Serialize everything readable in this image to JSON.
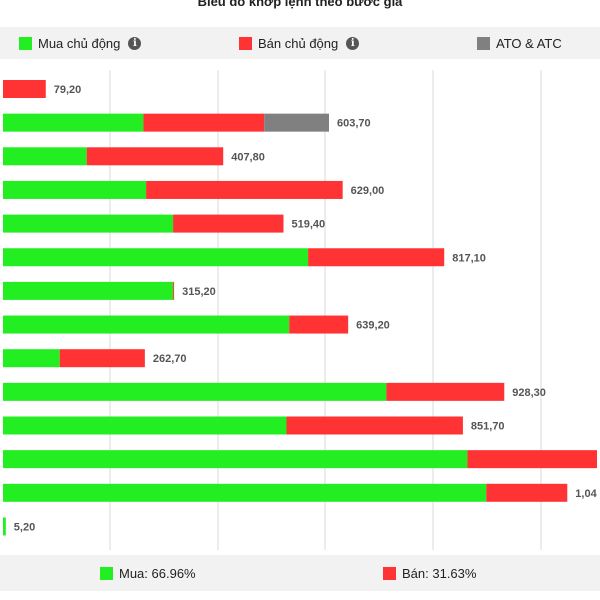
{
  "title": "Biểu đồ khớp lệnh theo bước giá",
  "legend": {
    "items": [
      {
        "label": "Mua chủ động",
        "color": "#22ee22",
        "icon": "info-icon"
      },
      {
        "label": "Bán chủ động",
        "color": "#ff3333",
        "icon": "info-icon"
      },
      {
        "label": "ATO & ATC",
        "color": "#808080"
      }
    ]
  },
  "summary": {
    "buy_label": "Mua: 66.96%",
    "sell_label": "Bán: 31.63%",
    "buy_color": "#22ee22",
    "sell_color": "#ff3333"
  },
  "chart_data": {
    "type": "bar",
    "orientation": "horizontal",
    "stacked": true,
    "grid": true,
    "xlim": [
      0,
      1100
    ],
    "series": [
      {
        "name": "Mua chủ động",
        "color": "#22ee22",
        "values": [
          0,
          260,
          155,
          265,
          315,
          565,
          315,
          530,
          105,
          710,
          525,
          860,
          895,
          5.2
        ]
      },
      {
        "name": "Bán chủ động",
        "color": "#ff3333",
        "values": [
          79.2,
          223.7,
          252.8,
          364,
          204.4,
          252.1,
          0.2,
          109.2,
          157.7,
          218.3,
          326.7,
          240,
          150,
          0
        ]
      },
      {
        "name": "ATO & ATC",
        "color": "#808080",
        "values": [
          0,
          120,
          0,
          0,
          0,
          0,
          0,
          0,
          0,
          0,
          0,
          0,
          0,
          0
        ]
      }
    ],
    "labels": [
      "79,20",
      "603,70",
      "407,80",
      "629,00",
      "519,40",
      "817,10",
      "315,20",
      "639,20",
      "262,70",
      "928,30",
      "851,70",
      "",
      "1,04",
      "5,20"
    ]
  }
}
